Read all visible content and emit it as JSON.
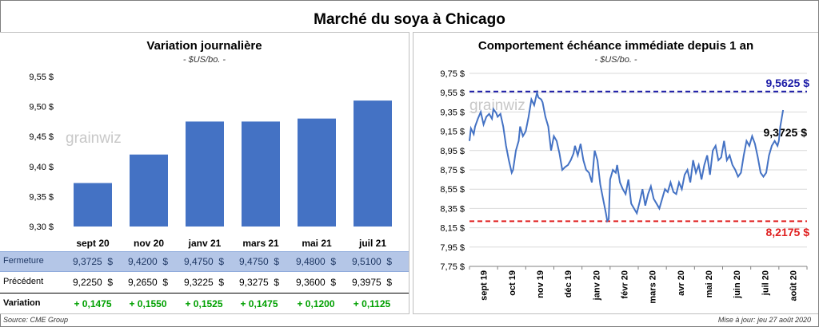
{
  "title": "Marché du soya à Chicago",
  "left": {
    "title": "Variation journalière",
    "subtitle": "- $US/bo. -",
    "watermark": "grainwiz"
  },
  "right": {
    "title": "Comportement échéance immédiate depuis 1 an",
    "subtitle": "- $US/bo. -",
    "watermark": "grainwiz",
    "label_high": "9,5625 $",
    "label_low": "8,2175 $",
    "label_last": "9,3725 $"
  },
  "table": {
    "row_labels": [
      "Fermeture",
      "Précédent",
      "Variation"
    ],
    "fermeture": [
      "9,3725  $",
      "9,4200  $",
      "9,4750  $",
      "9,4750  $",
      "9,4800  $",
      "9,5100  $"
    ],
    "precedent": [
      "9,2250  $",
      "9,2650  $",
      "9,3225  $",
      "9,3275  $",
      "9,3600  $",
      "9,3975  $"
    ],
    "variation": [
      "+ 0,1475",
      "+ 0,1550",
      "+ 0,1525",
      "+ 0,1475",
      "+ 0,1200",
      "+ 0,1125"
    ]
  },
  "footer": {
    "source": "Source: CME Group",
    "update": "Mise à jour: jeu 27 août 2020"
  },
  "colors": {
    "bar": "#4472c4",
    "line": "#4472c4",
    "high": "#1a1aa6",
    "low": "#e02020",
    "grid": "#d9d9d9",
    "variation": "#00a000"
  },
  "chart_data": [
    {
      "type": "bar",
      "categories": [
        "sept 20",
        "nov 20",
        "janv 21",
        "mars 21",
        "mai 21",
        "juil 21"
      ],
      "values": [
        9.3725,
        9.42,
        9.475,
        9.475,
        9.48,
        9.51
      ],
      "title": "Variation journalière",
      "ylim": [
        9.3,
        9.55
      ],
      "yticks": [
        9.3,
        9.35,
        9.4,
        9.45,
        9.5,
        9.55
      ],
      "ytick_labels": [
        "9,30 $",
        "9,35 $",
        "9,40 $",
        "9,45 $",
        "9,50 $",
        "9,55 $"
      ],
      "grid": false
    },
    {
      "type": "line",
      "title": "Comportement échéance immédiate depuis 1 an",
      "ylim": [
        7.75,
        9.75
      ],
      "yticks": [
        7.75,
        7.95,
        8.15,
        8.35,
        8.55,
        8.75,
        8.95,
        9.15,
        9.35,
        9.55,
        9.75
      ],
      "ytick_labels": [
        "7,75 $",
        "7,95 $",
        "8,15 $",
        "8,35 $",
        "8,55 $",
        "8,75 $",
        "8,95 $",
        "9,15 $",
        "9,35 $",
        "9,55 $",
        "9,75 $"
      ],
      "x_ticks": [
        "sept 19",
        "oct 19",
        "nov 19",
        "déc 19",
        "janv 20",
        "févr 20",
        "mars 20",
        "avr 20",
        "mai 20",
        "juin 20",
        "juil 20",
        "août 20"
      ],
      "high": 9.5625,
      "low": 8.2175,
      "last": 9.3725,
      "grid": true,
      "x": [
        0,
        0.05,
        0.15,
        0.2,
        0.3,
        0.4,
        0.5,
        0.6,
        0.7,
        0.8,
        0.85,
        0.95,
        1.0,
        1.1,
        1.2,
        1.3,
        1.4,
        1.5,
        1.55,
        1.65,
        1.75,
        1.8,
        1.9,
        2.0,
        2.1,
        2.2,
        2.3,
        2.4,
        2.45,
        2.55,
        2.6,
        2.7,
        2.8,
        2.9,
        3.0,
        3.1,
        3.2,
        3.3,
        3.4,
        3.5,
        3.6,
        3.7,
        3.75,
        3.85,
        3.95,
        4.05,
        4.15,
        4.25,
        4.35,
        4.45,
        4.55,
        4.65,
        4.75,
        4.85,
        4.9,
        4.95,
        5.0,
        5.1,
        5.2,
        5.25,
        5.35,
        5.45,
        5.55,
        5.65,
        5.75,
        5.85,
        5.95,
        6.05,
        6.15,
        6.25,
        6.35,
        6.45,
        6.55,
        6.65,
        6.75,
        6.85,
        6.95,
        7.05,
        7.15,
        7.25,
        7.35,
        7.45,
        7.55,
        7.65,
        7.75,
        7.85,
        7.95,
        8.05,
        8.15,
        8.25,
        8.35,
        8.45,
        8.55,
        8.65,
        8.75,
        8.85,
        8.95,
        9.05,
        9.15,
        9.25,
        9.35,
        9.45,
        9.55,
        9.65,
        9.75,
        9.85,
        9.95,
        10.05,
        10.15,
        10.25,
        10.35,
        10.45,
        10.55,
        10.65,
        10.75,
        10.85,
        10.95,
        11.0,
        11.05,
        11.15
      ],
      "y": [
        9.05,
        9.18,
        9.12,
        9.2,
        9.28,
        9.35,
        9.22,
        9.3,
        9.33,
        9.28,
        9.38,
        9.34,
        9.3,
        9.33,
        9.2,
        9.0,
        8.85,
        8.72,
        8.75,
        8.95,
        9.05,
        9.2,
        9.1,
        9.15,
        9.3,
        9.48,
        9.42,
        9.55,
        9.5,
        9.48,
        9.45,
        9.3,
        9.2,
        8.95,
        9.1,
        9.05,
        8.92,
        8.75,
        8.78,
        8.8,
        8.85,
        8.92,
        9.0,
        8.9,
        9.02,
        8.85,
        8.75,
        8.72,
        8.62,
        8.95,
        8.85,
        8.6,
        8.45,
        8.3,
        8.22,
        8.24,
        8.65,
        8.75,
        8.72,
        8.8,
        8.62,
        8.55,
        8.5,
        8.65,
        8.4,
        8.35,
        8.3,
        8.42,
        8.55,
        8.38,
        8.5,
        8.58,
        8.45,
        8.4,
        8.35,
        8.45,
        8.55,
        8.52,
        8.62,
        8.52,
        8.5,
        8.62,
        8.55,
        8.7,
        8.75,
        8.62,
        8.85,
        8.72,
        8.8,
        8.65,
        8.8,
        8.9,
        8.7,
        8.95,
        9.0,
        8.85,
        8.88,
        9.05,
        8.85,
        8.9,
        8.8,
        8.75,
        8.68,
        8.72,
        8.9,
        9.05,
        9.0,
        9.1,
        9.02,
        8.88,
        8.72,
        8.68,
        8.72,
        8.9,
        9.0,
        9.05,
        9.0,
        9.05,
        9.2,
        9.37
      ]
    }
  ]
}
